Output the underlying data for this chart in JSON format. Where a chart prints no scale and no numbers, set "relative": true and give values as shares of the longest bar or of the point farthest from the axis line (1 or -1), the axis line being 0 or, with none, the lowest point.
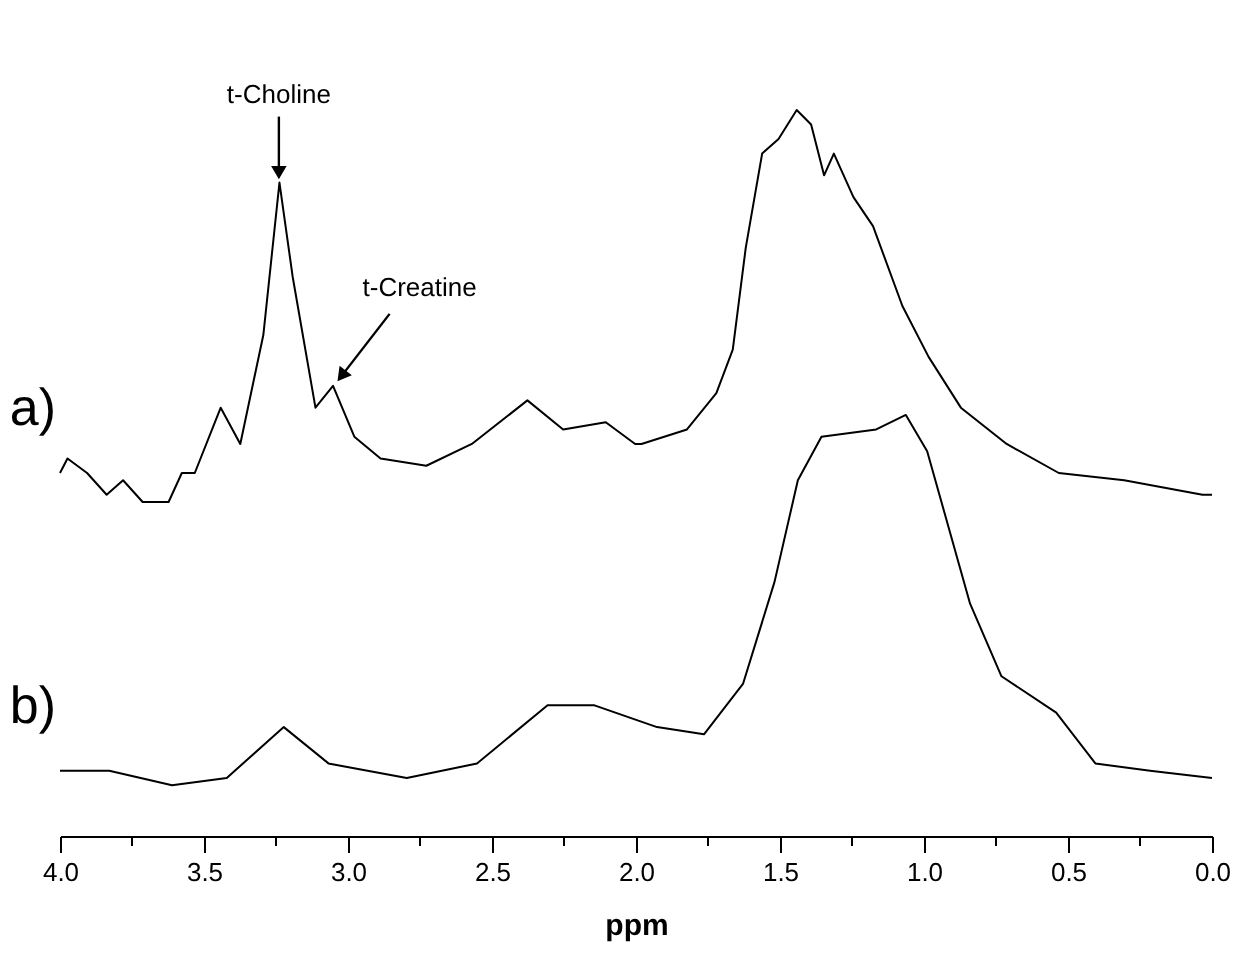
{
  "chart_data": {
    "type": "line",
    "relative": true,
    "xlabel": "ppm",
    "legend": false,
    "grid": false,
    "xlim": [
      4.0,
      0.0
    ],
    "xticks": [
      {
        "value": 4,
        "label": "4.0"
      },
      {
        "value": 3.75,
        "label": null
      },
      {
        "value": 3.5,
        "label": "3.5"
      },
      {
        "value": 3.25,
        "label": null
      },
      {
        "value": 3,
        "label": "3.0"
      },
      {
        "value": 2.75,
        "label": null
      },
      {
        "value": 2.5,
        "label": "2.5"
      },
      {
        "value": 2.25,
        "label": null
      },
      {
        "value": 2,
        "label": "2.0"
      },
      {
        "value": 1.75,
        "label": null
      },
      {
        "value": 1.5,
        "label": "1.5"
      },
      {
        "value": 1.25,
        "label": null
      },
      {
        "value": 1,
        "label": "1.0"
      },
      {
        "value": 0.75,
        "label": null
      },
      {
        "value": 0.5,
        "label": "0.5"
      },
      {
        "value": 0.25,
        "label": null
      },
      {
        "value": 0,
        "label": "0.0"
      }
    ],
    "annotations": [
      {
        "text": "t-Choline",
        "x": 3.24,
        "y": 0.9
      },
      {
        "text": "t-Creatine",
        "x": 3.05,
        "y": 0.62
      }
    ],
    "series": [
      {
        "name": "a)",
        "color": "#000000",
        "x": [
          4.0,
          3.974,
          3.906,
          3.838,
          3.781,
          3.713,
          3.623,
          3.577,
          3.532,
          3.442,
          3.374,
          3.294,
          3.238,
          3.192,
          3.113,
          3.052,
          2.978,
          2.887,
          2.728,
          2.57,
          2.377,
          2.253,
          2.105,
          2.003,
          1.981,
          1.823,
          1.721,
          1.664,
          1.619,
          1.562,
          1.505,
          1.442,
          1.392,
          1.347,
          1.313,
          1.245,
          1.177,
          1.075,
          0.984,
          0.872,
          0.713,
          0.532,
          0.305,
          0.033,
          0.0
        ],
        "values": [
          0.5,
          0.52,
          0.5,
          0.47,
          0.49,
          0.46,
          0.46,
          0.5,
          0.5,
          0.59,
          0.54,
          0.69,
          0.9,
          0.77,
          0.59,
          0.62,
          0.55,
          0.52,
          0.51,
          0.54,
          0.6,
          0.56,
          0.57,
          0.54,
          0.54,
          0.56,
          0.61,
          0.67,
          0.81,
          0.94,
          0.96,
          1.0,
          0.98,
          0.91,
          0.94,
          0.88,
          0.84,
          0.73,
          0.66,
          0.59,
          0.54,
          0.5,
          0.49,
          0.47,
          0.47
        ]
      },
      {
        "name": "b)",
        "color": "#000000",
        "x": [
          4.0,
          3.829,
          3.611,
          3.421,
          3.223,
          3.068,
          2.796,
          2.552,
          2.307,
          2.144,
          1.927,
          1.764,
          1.628,
          1.519,
          1.438,
          1.356,
          1.166,
          1.063,
          0.989,
          0.84,
          0.731,
          0.541,
          0.405,
          0.215,
          0.0
        ],
        "values": [
          0.09,
          0.09,
          0.07,
          0.08,
          0.15,
          0.1,
          0.08,
          0.1,
          0.18,
          0.18,
          0.15,
          0.14,
          0.21,
          0.35,
          0.49,
          0.55,
          0.56,
          0.58,
          0.53,
          0.32,
          0.22,
          0.17,
          0.1,
          0.09,
          0.08
        ]
      }
    ]
  }
}
